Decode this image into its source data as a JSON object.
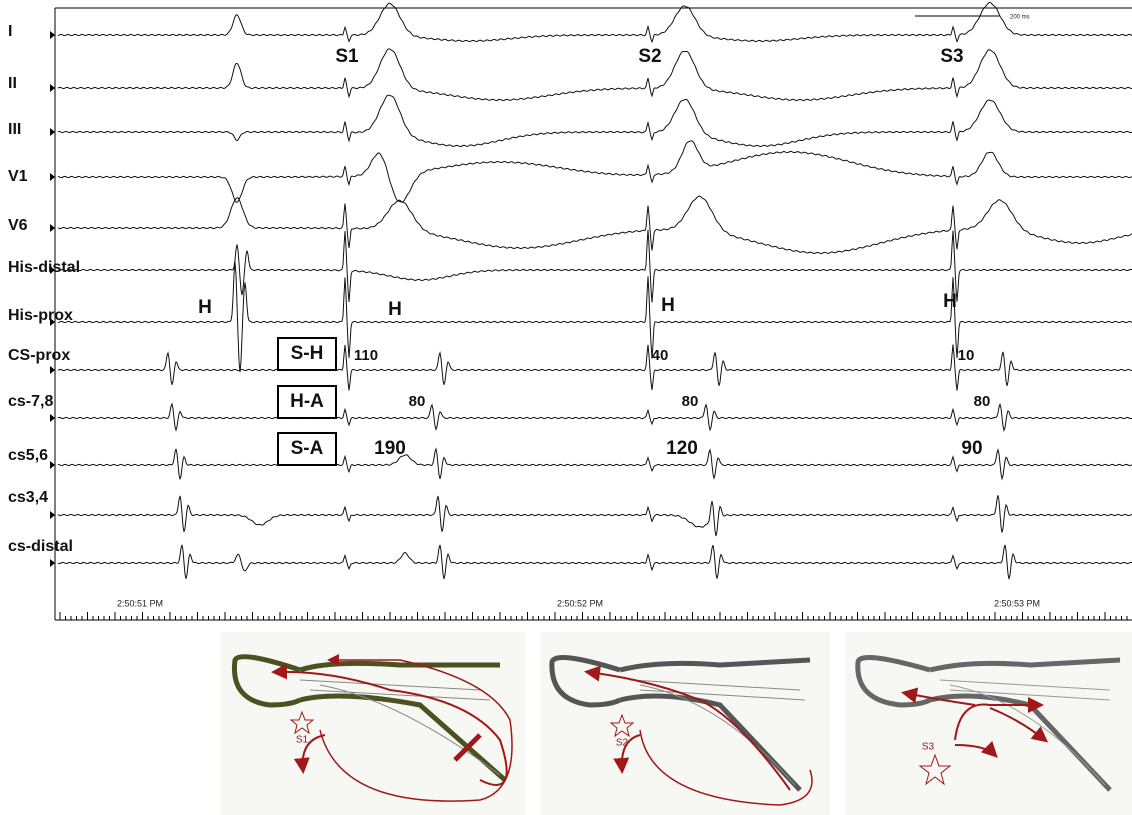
{
  "channels": [
    "I",
    "II",
    "III",
    "V1",
    "V6",
    "His-distal",
    "His-prox",
    "CS-prox",
    "cs-7,8",
    "cs5,6",
    "cs3,4",
    "cs-distal"
  ],
  "stimuli": [
    "S1",
    "S2",
    "S3"
  ],
  "his_labels": [
    "H",
    "H",
    "H",
    "H"
  ],
  "interval_labels": [
    "S-H",
    "H-A",
    "S-A"
  ],
  "sh_values": [
    110,
    40,
    10
  ],
  "ha_values": [
    80,
    80,
    80
  ],
  "sa_values": [
    190,
    120,
    90
  ],
  "timestamps": [
    "2:50:51 PM",
    "2:50:52 PM",
    "2:50:53 PM"
  ],
  "scale_bar": "200 ms",
  "diagram_labels": [
    "S1",
    "S2",
    "S3"
  ]
}
